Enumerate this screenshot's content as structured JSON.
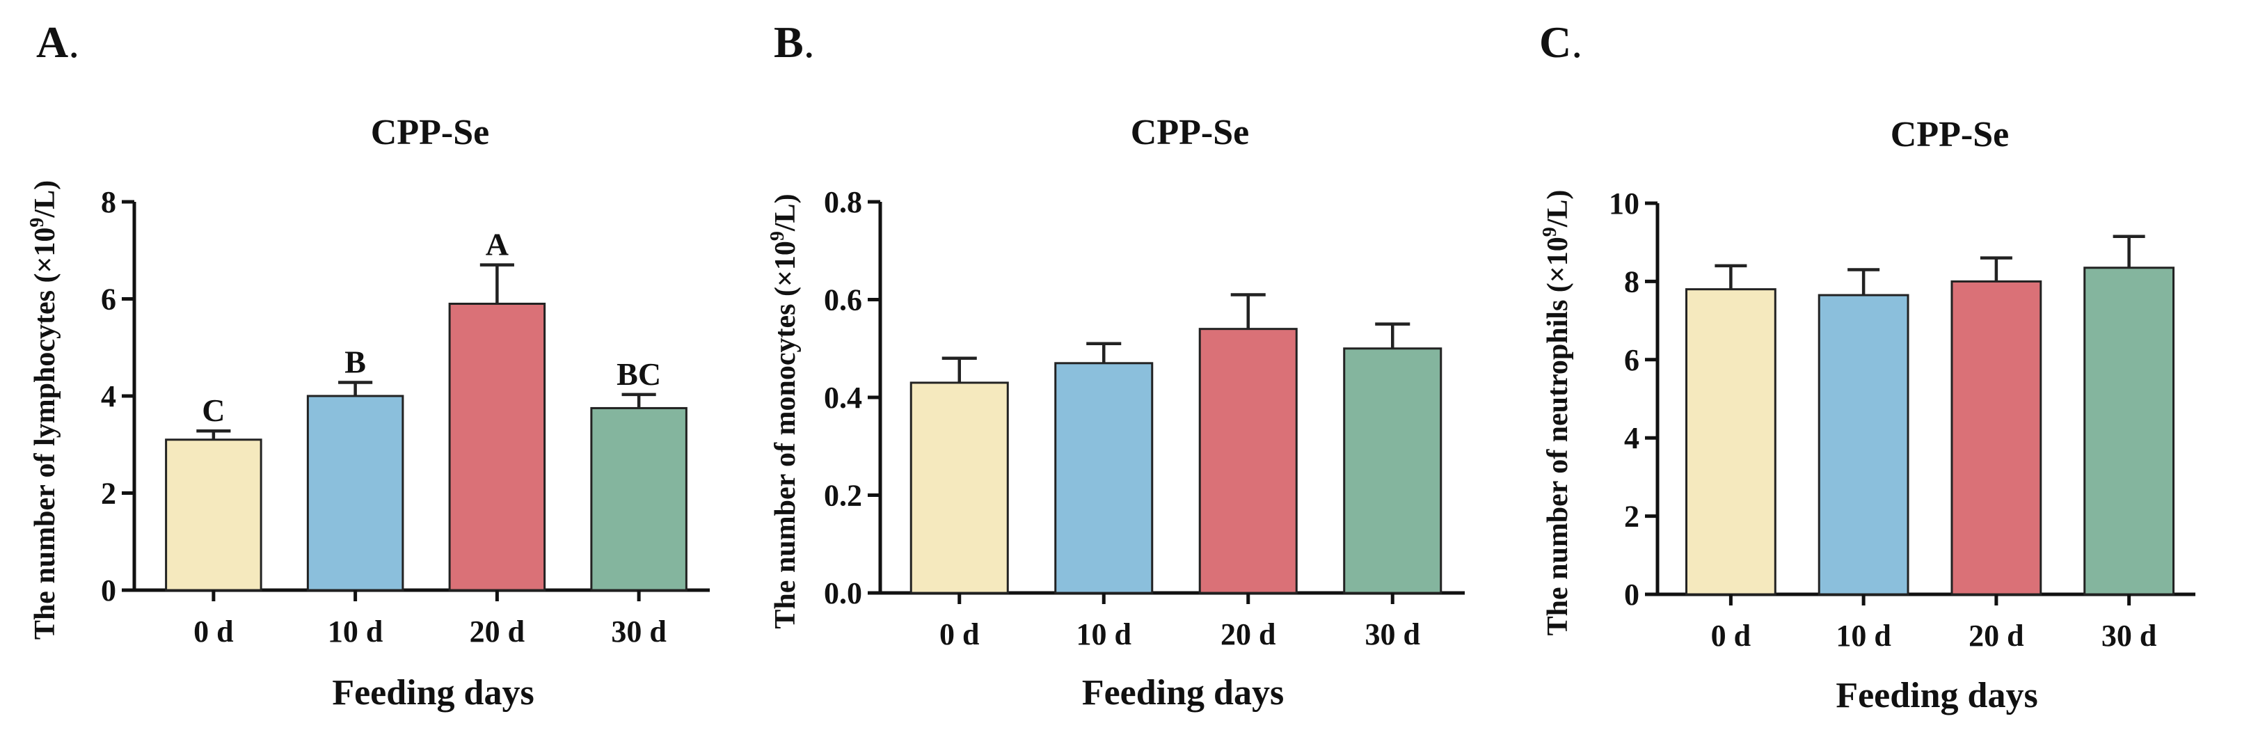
{
  "chart_data": [
    {
      "panel": "A",
      "panel_label": "A",
      "panel_sep": ".",
      "type": "bar",
      "title": "CPP-Se",
      "xlabel": "Feeding days",
      "ylabel_prefix": "The number of lymphocytes (×10",
      "ylabel_sup": "9",
      "ylabel_suffix": "/L)",
      "categories": [
        "0 d",
        "10 d",
        "20 d",
        "30 d"
      ],
      "values": [
        3.1,
        4.0,
        5.9,
        3.75
      ],
      "errors": [
        0.18,
        0.28,
        0.8,
        0.28
      ],
      "significance": [
        "C",
        "B",
        "A",
        "BC"
      ],
      "colors": [
        "#F5E9BE",
        "#8BBFDC",
        "#DA7177",
        "#84B59E"
      ],
      "ylim": [
        0,
        8
      ],
      "yticks": [
        0,
        2,
        4,
        6,
        8
      ],
      "ytick_labels": [
        "0",
        "2",
        "4",
        "6",
        "8"
      ]
    },
    {
      "panel": "B",
      "panel_label": "B",
      "panel_sep": ".",
      "type": "bar",
      "title": "CPP-Se",
      "xlabel": "Feeding days",
      "ylabel_prefix": "The number of monocytes (×10",
      "ylabel_sup": "9",
      "ylabel_suffix": "/L)",
      "categories": [
        "0 d",
        "10 d",
        "20 d",
        "30 d"
      ],
      "values": [
        0.43,
        0.47,
        0.54,
        0.5
      ],
      "errors": [
        0.05,
        0.04,
        0.07,
        0.05
      ],
      "significance": [],
      "colors": [
        "#F5E9BE",
        "#8BBFDC",
        "#DA7177",
        "#84B59E"
      ],
      "ylim": [
        0,
        0.8
      ],
      "yticks": [
        0,
        0.2,
        0.4,
        0.6,
        0.8
      ],
      "ytick_labels": [
        "0.0",
        "0.2",
        "0.4",
        "0.6",
        "0.8"
      ]
    },
    {
      "panel": "C",
      "panel_label": "C",
      "panel_sep": ".",
      "type": "bar",
      "title": "CPP-Se",
      "xlabel": "Feeding days",
      "ylabel_prefix": "The number of neutrophils (×10",
      "ylabel_sup": "9",
      "ylabel_suffix": "/L)",
      "categories": [
        "0 d",
        "10 d",
        "20 d",
        "30 d"
      ],
      "values": [
        7.8,
        7.65,
        8.0,
        8.35
      ],
      "errors": [
        0.6,
        0.65,
        0.6,
        0.8
      ],
      "significance": [],
      "colors": [
        "#F5E9BE",
        "#8BBFDC",
        "#DA7177",
        "#84B59E"
      ],
      "ylim": [
        0,
        10
      ],
      "yticks": [
        0,
        2,
        4,
        6,
        8,
        10
      ],
      "ytick_labels": [
        "0",
        "2",
        "4",
        "6",
        "8",
        "10"
      ]
    }
  ]
}
